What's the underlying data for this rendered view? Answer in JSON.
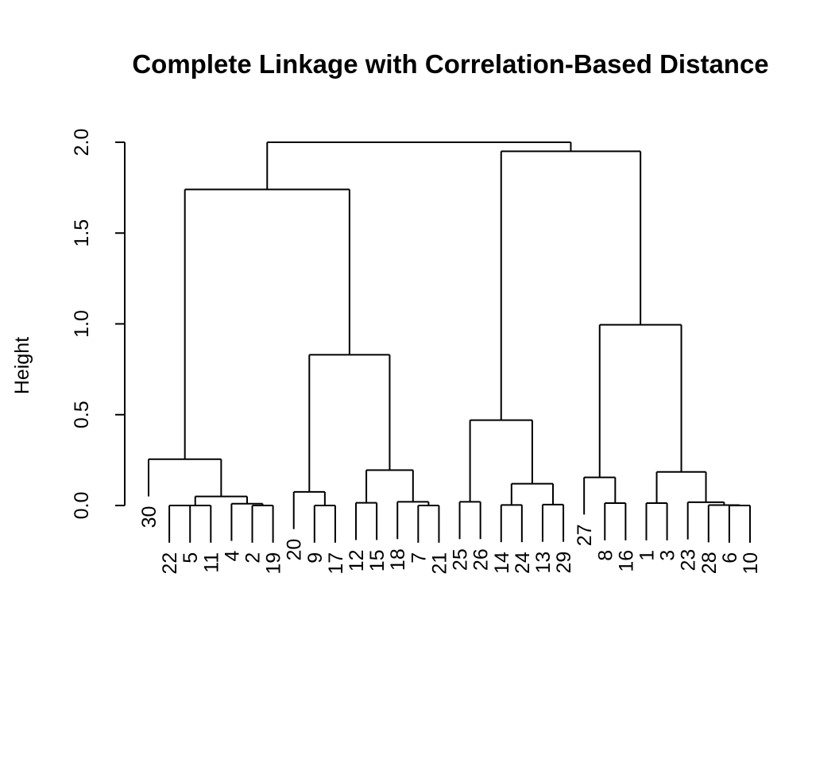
{
  "chart_data": {
    "type": "dendrogram",
    "title": "Complete Linkage with Correlation-Based Distance",
    "ylabel": "Height",
    "xlabel": "",
    "ylim": [
      0,
      2.0
    ],
    "yticks": [
      0.0,
      0.5,
      1.0,
      1.5,
      2.0
    ],
    "ytick_labels": [
      "0.0",
      "0.5",
      "1.0",
      "1.5",
      "2.0"
    ],
    "hang": 0.205,
    "leaf_order": [
      30,
      22,
      5,
      11,
      4,
      2,
      19,
      20,
      9,
      17,
      12,
      15,
      18,
      7,
      21,
      25,
      26,
      14,
      24,
      13,
      29,
      27,
      8,
      16,
      1,
      3,
      23,
      28,
      6,
      10
    ],
    "tree": {
      "h": 2.0,
      "c": [
        {
          "h": 1.74,
          "c": [
            {
              "h": 0.255,
              "c": [
                30,
                {
                  "h": 0.05,
                  "c": [
                    {
                      "h": 0.0,
                      "c": [
                        {
                          "h": 0.0,
                          "c": [
                            22,
                            5
                          ]
                        },
                        11
                      ]
                    },
                    {
                      "h": 0.01,
                      "c": [
                        4,
                        {
                          "h": 0.0,
                          "c": [
                            2,
                            19
                          ]
                        }
                      ]
                    }
                  ]
                }
              ]
            },
            {
              "h": 0.83,
              "c": [
                {
                  "h": 0.075,
                  "c": [
                    20,
                    {
                      "h": 0.0,
                      "c": [
                        9,
                        17
                      ]
                    }
                  ]
                },
                {
                  "h": 0.195,
                  "c": [
                    {
                      "h": 0.015,
                      "c": [
                        12,
                        15
                      ]
                    },
                    {
                      "h": 0.02,
                      "c": [
                        18,
                        {
                          "h": 0.0,
                          "c": [
                            7,
                            21
                          ]
                        }
                      ]
                    }
                  ]
                }
              ]
            }
          ]
        },
        {
          "h": 1.95,
          "c": [
            {
              "h": 0.47,
              "c": [
                {
                  "h": 0.02,
                  "c": [
                    25,
                    26
                  ]
                },
                {
                  "h": 0.12,
                  "c": [
                    {
                      "h": 0.003,
                      "c": [
                        14,
                        24
                      ]
                    },
                    {
                      "h": 0.005,
                      "c": [
                        13,
                        29
                      ]
                    }
                  ]
                }
              ]
            },
            {
              "h": 0.995,
              "c": [
                {
                  "h": 0.155,
                  "c": [
                    27,
                    {
                      "h": 0.013,
                      "c": [
                        8,
                        16
                      ]
                    }
                  ]
                },
                {
                  "h": 0.185,
                  "c": [
                    {
                      "h": 0.013,
                      "c": [
                        1,
                        3
                      ]
                    },
                    {
                      "h": 0.018,
                      "c": [
                        23,
                        {
                          "h": 0.002,
                          "c": [
                            28,
                            {
                              "h": 0.0,
                              "c": [
                                6,
                                10
                              ]
                            }
                          ]
                        }
                      ]
                    }
                  ]
                }
              ]
            }
          ]
        }
      ]
    }
  }
}
